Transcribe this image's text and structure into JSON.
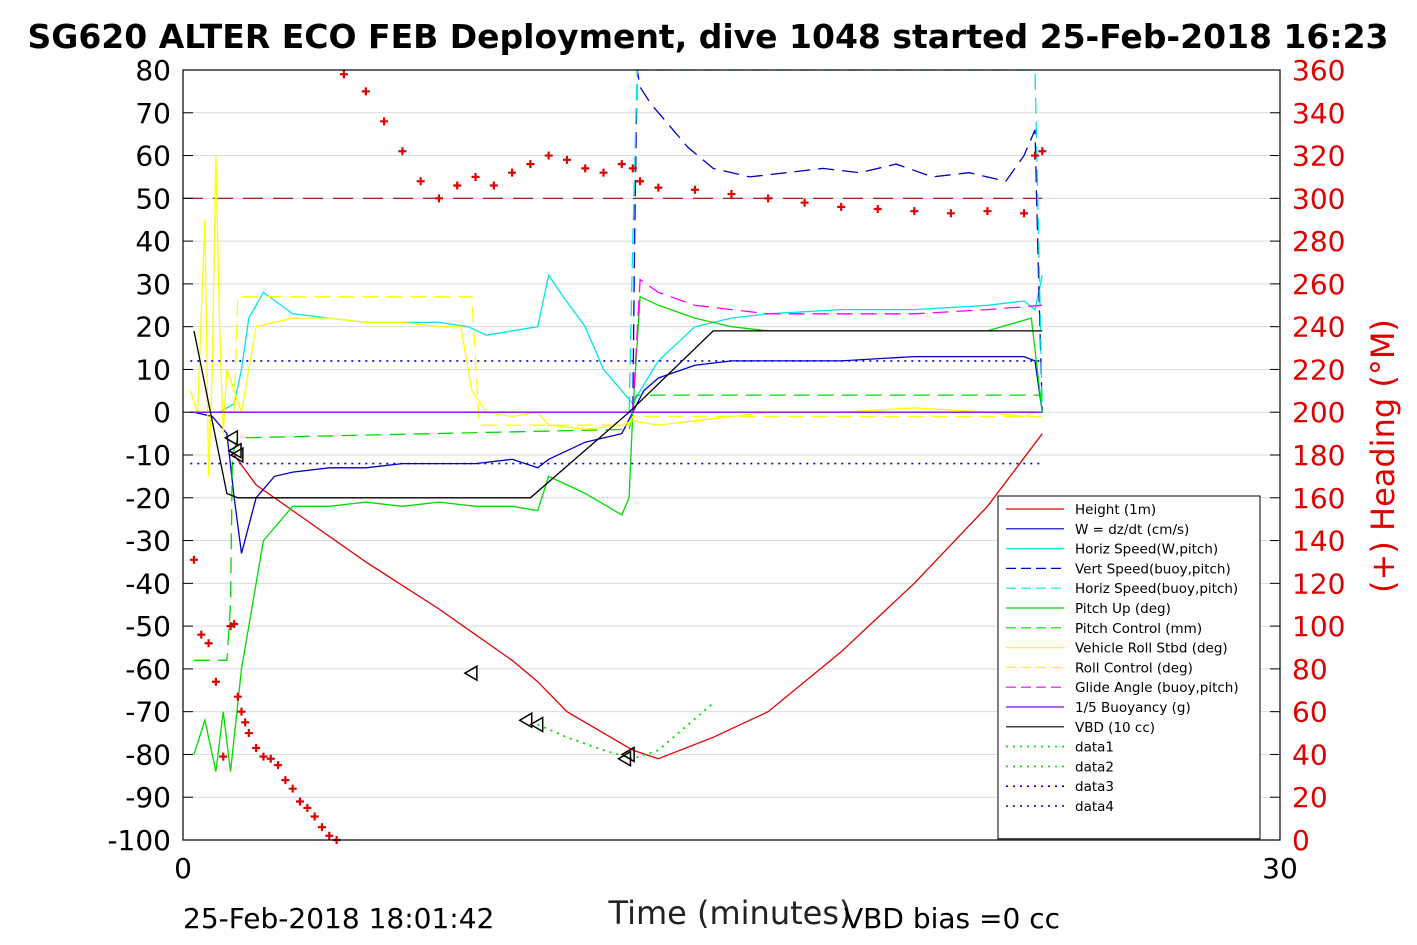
{
  "chart_data": {
    "type": "line",
    "title": "SG620 ALTER ECO FEB Deployment, dive 1048 started 25-Feb-2018 16:23",
    "xlabel": "Time (minutes)",
    "ylabel_right": "(+) Heading (°M)",
    "xlim": [
      0,
      30
    ],
    "ylim_left": [
      -100,
      80
    ],
    "ylim_right": [
      0,
      360
    ],
    "x_ticks": [
      "0",
      "30"
    ],
    "y_ticks_left": [
      "80",
      "70",
      "60",
      "50",
      "40",
      "30",
      "20",
      "10",
      "0",
      "-10",
      "-20",
      "-30",
      "-40",
      "-50",
      "-60",
      "-70",
      "-80",
      "-90",
      "-100"
    ],
    "y_ticks_right": [
      "360",
      "340",
      "320",
      "300",
      "280",
      "260",
      "240",
      "220",
      "200",
      "180",
      "160",
      "140",
      "120",
      "100",
      "80",
      "60",
      "40",
      "20",
      "0"
    ],
    "grid": true,
    "legend_position": "lower-right",
    "footer_left": "25-Feb-2018 18:01:42",
    "footer_right": "VBD bias =0 cc",
    "series": [
      {
        "name": "Height (1m)",
        "color": "#e00000",
        "style": "solid",
        "x": [
          1.4,
          2,
          3,
          5,
          7,
          8,
          9,
          9.7,
          10.5,
          11.5,
          12.3,
          13,
          14.5,
          16,
          18,
          20,
          22,
          23.5
        ],
        "values": [
          -10,
          -17,
          -23,
          -35,
          -46,
          -52,
          -58,
          -63,
          -70,
          -75,
          -79,
          -81,
          -76,
          -70,
          -56,
          -40,
          -22,
          -5
        ]
      },
      {
        "name": "W = dz/dt (cm/s)",
        "color": "#0000c8",
        "style": "solid",
        "x": [
          0.3,
          0.8,
          1.2,
          1.4,
          1.6,
          2,
          2.5,
          3,
          4,
          5,
          6,
          7,
          8,
          9,
          9.7,
          10,
          11,
          12,
          12.3,
          12.6,
          13,
          14,
          15,
          16,
          18,
          20,
          22,
          23,
          23.3,
          23.5
        ],
        "values": [
          0,
          -1,
          -5,
          -20,
          -33,
          -20,
          -15,
          -14,
          -13,
          -13,
          -12,
          -12,
          -12,
          -11,
          -13,
          -11,
          -7,
          -5,
          0,
          5,
          8,
          11,
          12,
          12,
          12,
          13,
          13,
          13,
          12,
          0
        ]
      },
      {
        "name": "Horiz Speed(W,pitch)",
        "color": "#00e5e5",
        "style": "solid",
        "x": [
          0.3,
          1,
          1.4,
          1.6,
          1.8,
          2.2,
          3,
          4,
          5,
          6,
          7,
          7.8,
          8.3,
          9,
          9.7,
          10,
          10.4,
          11,
          11.5,
          12,
          12.3,
          12.5,
          13,
          14,
          15,
          16,
          18,
          20,
          22,
          23,
          23.3,
          23.5
        ],
        "values": [
          0,
          0,
          2,
          10,
          22,
          28,
          23,
          22,
          21,
          21,
          21,
          20,
          18,
          19,
          20,
          32,
          27,
          20,
          10,
          5,
          2,
          5,
          12,
          20,
          22,
          23,
          24,
          24,
          25,
          26,
          24,
          32
        ]
      },
      {
        "name": "Vert Speed(buoy,pitch)",
        "color": "#0000c8",
        "style": "dashed",
        "x": [
          12.3,
          12.35,
          12.42,
          12.5,
          12.8,
          13.2,
          13.8,
          14.5,
          15.5,
          16.5,
          17.5,
          18.5,
          19.5,
          20.5,
          21.5,
          22.5,
          23,
          23.3,
          23.4,
          23.5
        ],
        "values": [
          0,
          40,
          80,
          76,
          72,
          68,
          62,
          57,
          55,
          56,
          57,
          56,
          58,
          55,
          56,
          54,
          60,
          66,
          30,
          0
        ]
      },
      {
        "name": "Horiz Speed(buoy,pitch)",
        "color": "#00e5e5",
        "style": "dashed",
        "x": [
          12.2,
          12.3,
          12.42,
          12.5,
          23.3,
          23.4,
          23.5
        ],
        "values": [
          0,
          40,
          80,
          80,
          80,
          40,
          0
        ]
      },
      {
        "name": "Pitch Up (deg)",
        "color": "#00dc00",
        "style": "solid",
        "x": [
          0.3,
          0.6,
          0.9,
          1.1,
          1.3,
          1.6,
          2.2,
          3,
          4,
          5,
          6,
          7,
          8,
          9,
          9.7,
          10,
          10.5,
          11,
          11.6,
          12,
          12.2,
          12.3,
          12.5,
          13,
          14,
          15,
          16,
          18,
          20,
          22,
          23.2,
          23.5
        ],
        "values": [
          -80,
          -72,
          -84,
          -70,
          -84,
          -60,
          -30,
          -22,
          -22,
          -21,
          -22,
          -21,
          -22,
          -22,
          -23,
          -15,
          -17,
          -19,
          -22,
          -24,
          -20,
          0,
          27,
          25,
          22,
          20,
          19,
          19,
          19,
          19,
          22,
          0
        ]
      },
      {
        "name": "Pitch Control (mm)",
        "color": "#00dc00",
        "style": "dashed",
        "x": [
          0.3,
          1.2,
          1.3,
          1.35,
          1.5,
          12.2,
          12.3,
          12.35,
          12.4,
          23.5
        ],
        "values": [
          -58,
          -58,
          -45,
          -10,
          -6,
          -4,
          0,
          3,
          4,
          4
        ]
      },
      {
        "name": "Vehicle Roll Stbd (deg)",
        "color": "#ffff00",
        "style": "solid",
        "x": [
          0.2,
          0.4,
          0.6,
          0.7,
          0.8,
          0.9,
          1.0,
          1.1,
          1.2,
          1.4,
          1.6,
          2,
          3,
          4,
          5,
          6,
          7,
          7.6,
          7.9,
          8.3,
          9,
          9.7,
          10,
          11,
          12,
          12.3,
          13,
          14,
          15,
          16,
          18,
          20,
          22,
          23,
          23.3,
          23.5
        ],
        "values": [
          5,
          0,
          45,
          -15,
          10,
          60,
          20,
          -5,
          10,
          5,
          0,
          20,
          22,
          22,
          21,
          21,
          20,
          20,
          5,
          0,
          -1,
          0,
          -3,
          -4,
          -3,
          -2,
          -3,
          -2,
          -1,
          0,
          0,
          1,
          0,
          -1,
          0,
          0
        ]
      },
      {
        "name": "Roll Control (deg)",
        "color": "#ffff00",
        "style": "dashed",
        "x": [
          1.4,
          1.5,
          7.9,
          8.1,
          12.2,
          12.3,
          23.5
        ],
        "values": [
          0,
          27,
          27,
          -3,
          -3,
          -1,
          -1
        ]
      },
      {
        "name": "Glide Angle (buoy,pitch)",
        "color": "#ff00ff",
        "style": "dashed",
        "x": [
          12.3,
          12.5,
          13,
          14,
          15,
          16,
          18,
          20,
          22,
          23.5
        ],
        "values": [
          0,
          31,
          28,
          25,
          24,
          23,
          23,
          23,
          24,
          25
        ]
      },
      {
        "name": "1/5 Buoyancy (g)",
        "color": "#8b00ff",
        "style": "solid",
        "x": [
          0.2,
          23.5
        ],
        "values": [
          0,
          0
        ]
      },
      {
        "name": "VBD (10 cc)",
        "color": "#000000",
        "style": "solid",
        "x": [
          0.3,
          1.2,
          1.5,
          9.5,
          12.2,
          14.5,
          23.5
        ],
        "values": [
          19,
          -19,
          -20,
          -20,
          0,
          19,
          19
        ]
      },
      {
        "name": "data1",
        "color": "#00dc00",
        "style": "dotted",
        "x": [
          9.7,
          10.5,
          11.5,
          12.3,
          13,
          14.5
        ],
        "values": [
          -73,
          -76,
          -79,
          -81,
          -79,
          -68
        ]
      },
      {
        "name": "data2",
        "color": "#00dc00",
        "style": "dotted",
        "x": [
          9.7,
          10.5,
          11.5,
          12.3,
          13,
          14.5
        ],
        "values": [
          -73,
          -76,
          -79,
          -81,
          -79,
          -68
        ]
      },
      {
        "name": "data3",
        "color": "#0000c8",
        "style": "dotted",
        "x": [
          0.2,
          23.5
        ],
        "values": [
          -12,
          -12
        ]
      },
      {
        "name": "data4",
        "color": "#0000c8",
        "style": "dotted",
        "x": [
          0.2,
          23.5
        ],
        "values": [
          12,
          12
        ]
      }
    ],
    "heading_points": {
      "name": "Heading (°M)",
      "color": "#e00000",
      "marker": "+",
      "x": [
        0.3,
        0.5,
        0.7,
        0.9,
        1.1,
        1.3,
        1.4,
        1.5,
        1.6,
        1.7,
        1.8,
        2.0,
        2.2,
        2.4,
        2.6,
        2.8,
        3.0,
        3.2,
        3.4,
        3.6,
        3.8,
        4.0,
        4.2,
        4.4,
        5.0,
        5.5,
        6.0,
        6.5,
        7.0,
        7.5,
        8.0,
        8.5,
        9.0,
        9.5,
        10.0,
        10.5,
        11.0,
        11.5,
        12.0,
        12.3,
        12.5,
        13.0,
        14.0,
        15.0,
        16.0,
        17.0,
        18.0,
        19.0,
        20.0,
        21.0,
        22.0,
        23.0,
        23.3,
        23.5
      ],
      "values": [
        131,
        96,
        92,
        74,
        39,
        100,
        101,
        67,
        60,
        55,
        50,
        43,
        39,
        38,
        35,
        28,
        24,
        18,
        15,
        11,
        6,
        2,
        0,
        358,
        350,
        336,
        322,
        308,
        300,
        306,
        310,
        306,
        312,
        316,
        320,
        318,
        314,
        312,
        316,
        314,
        308,
        305,
        304,
        302,
        300,
        298,
        296,
        295,
        294,
        293,
        294,
        293,
        320,
        322
      ]
    },
    "markers": {
      "name": "triangles",
      "x": [
        1.35,
        1.45,
        1.5,
        7.9,
        9.4,
        9.7,
        12.1,
        12.2
      ],
      "values": [
        -6,
        -9,
        -10,
        -61,
        -72,
        -73,
        -81,
        -80
      ]
    }
  }
}
